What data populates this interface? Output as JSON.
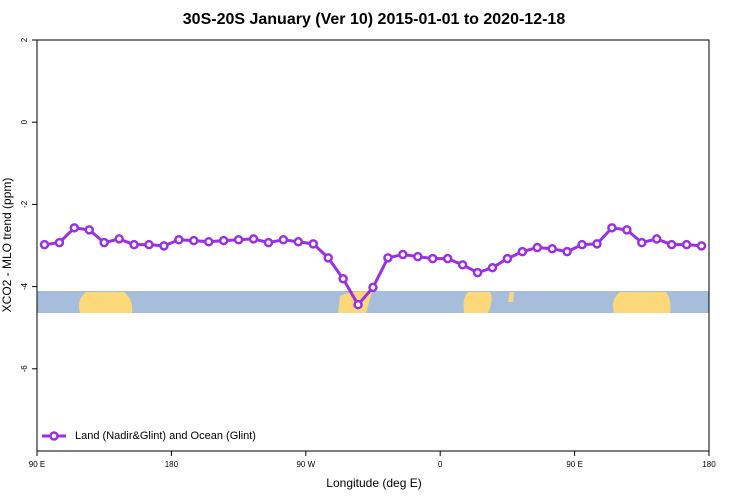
{
  "chart_data": {
    "type": "line",
    "title": "30S-20S January (Ver 10)   2015-01-01 to 2020-12-18",
    "xlabel": "Longitude (deg E)",
    "ylabel": "XCO2 - MLO trend (ppm)",
    "x": [
      95,
      105,
      115,
      125,
      135,
      145,
      155,
      165,
      175,
      185,
      195,
      205,
      215,
      225,
      235,
      245,
      255,
      265,
      275,
      285,
      295,
      305,
      315,
      325,
      335,
      345,
      355,
      365,
      375,
      385,
      395,
      405,
      415,
      425,
      435,
      445,
      455,
      465,
      475,
      485,
      495,
      505,
      515,
      525,
      535
    ],
    "series": [
      {
        "name": "Land (Nadir&Glint) and Ocean (Glint)",
        "color": "#9b30e0",
        "values": [
          -2.98,
          -2.93,
          -2.57,
          -2.62,
          -2.93,
          -2.84,
          -2.98,
          -2.98,
          -3.01,
          -2.86,
          -2.88,
          -2.91,
          -2.88,
          -2.86,
          -2.84,
          -2.93,
          -2.86,
          -2.91,
          -2.96,
          -3.3,
          -3.81,
          -4.44,
          -4.02,
          -3.3,
          -3.22,
          -3.27,
          -3.32,
          -3.32,
          -3.47,
          -3.66,
          -3.54,
          -3.32,
          -3.15,
          -3.05,
          -3.08,
          -3.15,
          -2.98,
          -2.96,
          -2.57,
          -2.62,
          -2.93,
          -2.84,
          -2.98,
          -2.98,
          -3.01
        ]
      }
    ],
    "xlim": [
      90,
      540
    ],
    "xticks": [
      {
        "value": 90,
        "label": "90 E"
      },
      180,
      {
        "value": 270,
        "label": "90 W"
      },
      {
        "value": 360,
        "label": "0"
      },
      {
        "value": 450,
        "label": "90 E"
      },
      {
        "value": 540,
        "label": "180"
      }
    ],
    "ylim": [
      -8,
      2
    ],
    "yticks": [
      2,
      0,
      -2,
      -4,
      -6
    ],
    "legend": "bottom-left"
  }
}
